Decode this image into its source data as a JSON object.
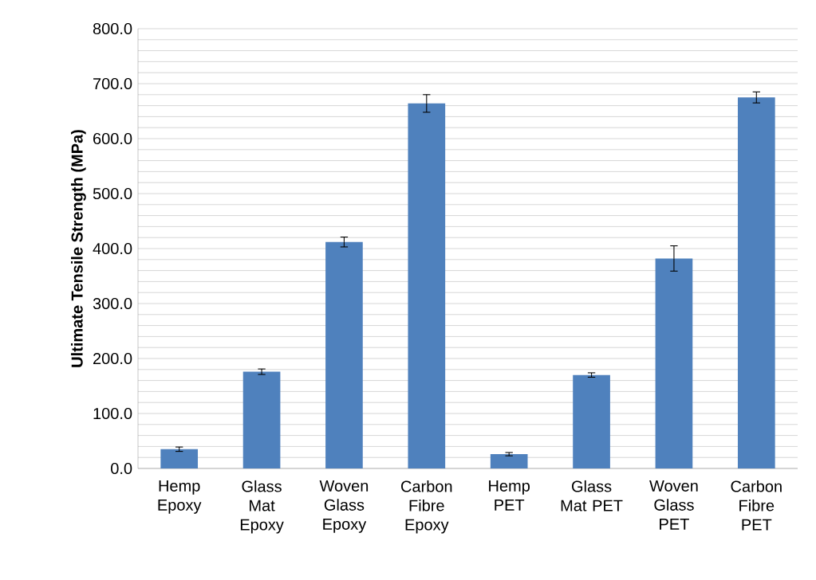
{
  "chart_data": {
    "type": "bar",
    "ylabel": "Ultimate Tensile Strength (MPa)",
    "categories": [
      "Hemp Epoxy",
      "Glass Mat Epoxy",
      "Woven Glass Epoxy",
      "Carbon Fibre Epoxy",
      "Hemp PET",
      "Glass Mat PET",
      "Woven Glass PET",
      "Carbon Fibre PET"
    ],
    "values": [
      35,
      176,
      412,
      664,
      26,
      170,
      382,
      675
    ],
    "errors": [
      4,
      5,
      9,
      16,
      3,
      4,
      23,
      10
    ],
    "color": "#4f81bd",
    "ylim": [
      0,
      800
    ],
    "yticks": [
      {
        "value": 0,
        "label": "0.0"
      },
      {
        "value": 20,
        "label": null
      },
      {
        "value": 40,
        "label": null
      },
      {
        "value": 60,
        "label": null
      },
      {
        "value": 80,
        "label": null
      },
      {
        "value": 100,
        "label": "100.0"
      },
      {
        "value": 120,
        "label": null
      },
      {
        "value": 140,
        "label": null
      },
      {
        "value": 160,
        "label": null
      },
      {
        "value": 180,
        "label": null
      },
      {
        "value": 200,
        "label": "200.0"
      },
      {
        "value": 220,
        "label": null
      },
      {
        "value": 240,
        "label": null
      },
      {
        "value": 260,
        "label": null
      },
      {
        "value": 280,
        "label": null
      },
      {
        "value": 300,
        "label": "300.0"
      },
      {
        "value": 320,
        "label": null
      },
      {
        "value": 340,
        "label": null
      },
      {
        "value": 360,
        "label": null
      },
      {
        "value": 380,
        "label": null
      },
      {
        "value": 400,
        "label": "400.0"
      },
      {
        "value": 420,
        "label": null
      },
      {
        "value": 440,
        "label": null
      },
      {
        "value": 460,
        "label": null
      },
      {
        "value": 480,
        "label": null
      },
      {
        "value": 500,
        "label": "500.0"
      },
      {
        "value": 520,
        "label": null
      },
      {
        "value": 540,
        "label": null
      },
      {
        "value": 560,
        "label": null
      },
      {
        "value": 580,
        "label": null
      },
      {
        "value": 600,
        "label": "600.0"
      },
      {
        "value": 620,
        "label": null
      },
      {
        "value": 640,
        "label": null
      },
      {
        "value": 660,
        "label": null
      },
      {
        "value": 680,
        "label": null
      },
      {
        "value": 700,
        "label": "700.0"
      },
      {
        "value": 720,
        "label": null
      },
      {
        "value": 740,
        "label": null
      },
      {
        "value": 760,
        "label": null
      },
      {
        "value": 780,
        "label": null
      },
      {
        "value": 800,
        "label": "800.0"
      }
    ],
    "grid": "y"
  }
}
